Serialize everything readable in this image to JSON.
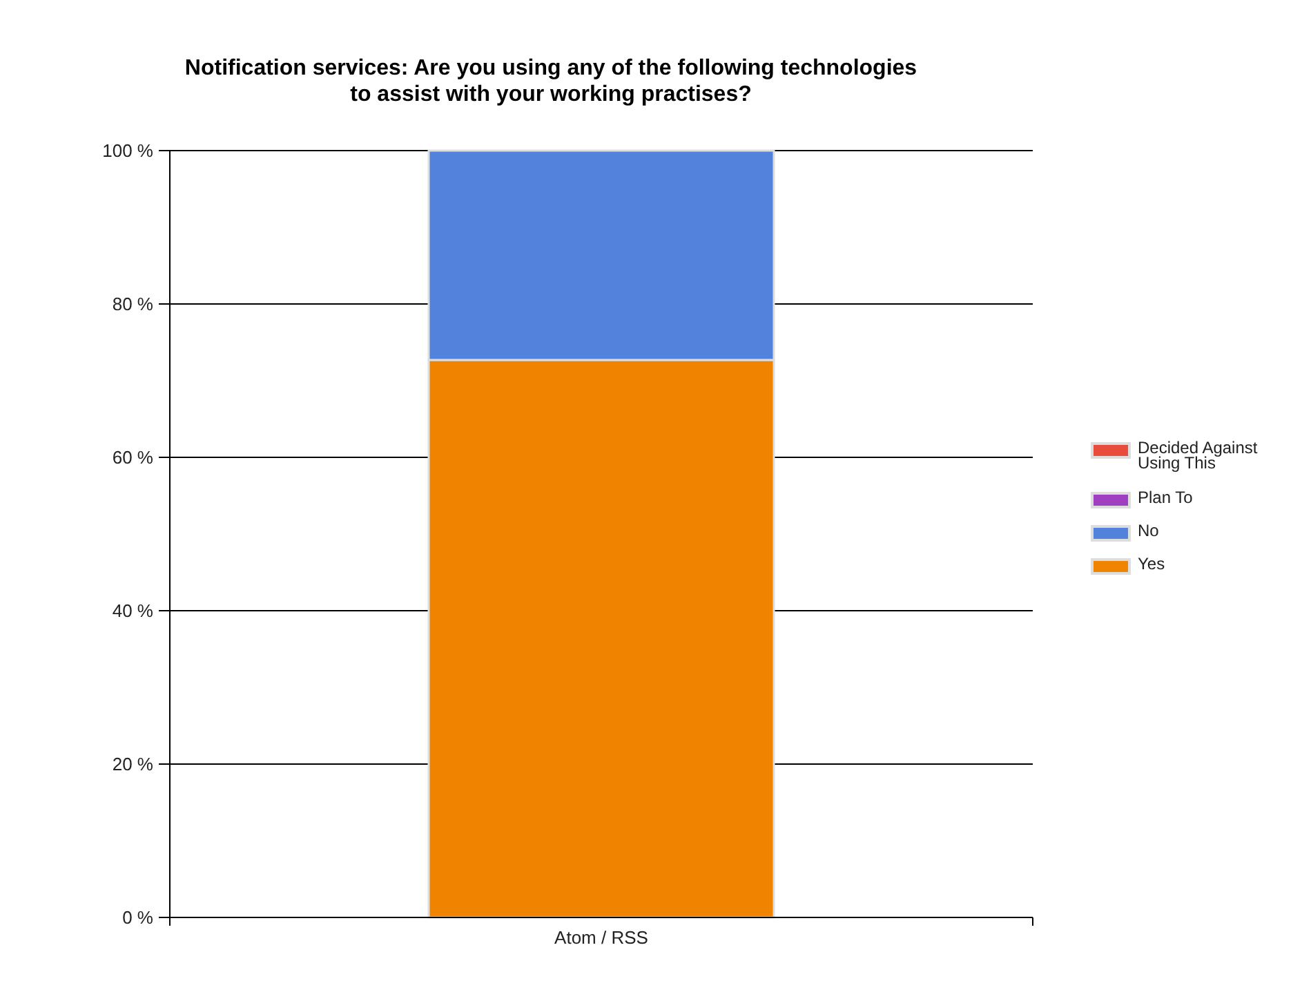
{
  "chart_data": {
    "type": "bar",
    "title": "Notification services: Are you using any of the following technologies to assist with your working practises?",
    "categories": [
      "Atom / RSS"
    ],
    "stacked": true,
    "series": [
      {
        "name": "Yes",
        "color": "#f08400",
        "values": [
          72.7
        ]
      },
      {
        "name": "No",
        "color": "#5283dc",
        "values": [
          27.3
        ]
      },
      {
        "name": "Plan To",
        "color": "#a040c0",
        "values": [
          0
        ]
      },
      {
        "name": "Decided Against Using This",
        "color": "#e84c3c",
        "values": [
          0
        ]
      }
    ],
    "ylim": [
      0,
      100
    ],
    "yticks": [
      {
        "value": 0,
        "label": "0 %"
      },
      {
        "value": 20,
        "label": "20 %"
      },
      {
        "value": 40,
        "label": "40 %"
      },
      {
        "value": 60,
        "label": "60 %"
      },
      {
        "value": 80,
        "label": "80 %"
      },
      {
        "value": 100,
        "label": "100 %"
      }
    ],
    "grid": "y",
    "legend": "right"
  }
}
